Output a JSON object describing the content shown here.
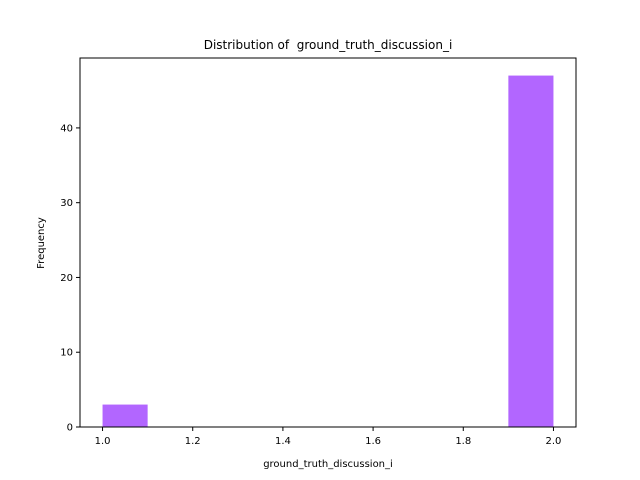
{
  "chart_data": {
    "type": "bar",
    "title": "Distribution of  ground_truth_discussion_i",
    "xlabel": "ground_truth_discussion_i",
    "ylabel": "Frequency",
    "bins": [
      {
        "start": 1.0,
        "end": 1.1,
        "count": 3
      },
      {
        "start": 1.1,
        "end": 1.2,
        "count": 0
      },
      {
        "start": 1.2,
        "end": 1.3,
        "count": 0
      },
      {
        "start": 1.3,
        "end": 1.4,
        "count": 0
      },
      {
        "start": 1.4,
        "end": 1.5,
        "count": 0
      },
      {
        "start": 1.5,
        "end": 1.6,
        "count": 0
      },
      {
        "start": 1.6,
        "end": 1.7,
        "count": 0
      },
      {
        "start": 1.7,
        "end": 1.8,
        "count": 0
      },
      {
        "start": 1.8,
        "end": 1.9,
        "count": 0
      },
      {
        "start": 1.9,
        "end": 2.0,
        "count": 47
      }
    ],
    "xlim": [
      0.95,
      2.05
    ],
    "ylim": [
      0,
      49.35
    ],
    "xticks": [
      "1.0",
      "1.2",
      "1.4",
      "1.6",
      "1.8",
      "2.0"
    ],
    "yticks": [
      "0",
      "10",
      "20",
      "30",
      "40"
    ],
    "grid": false,
    "bar_color": "#b266ff"
  }
}
